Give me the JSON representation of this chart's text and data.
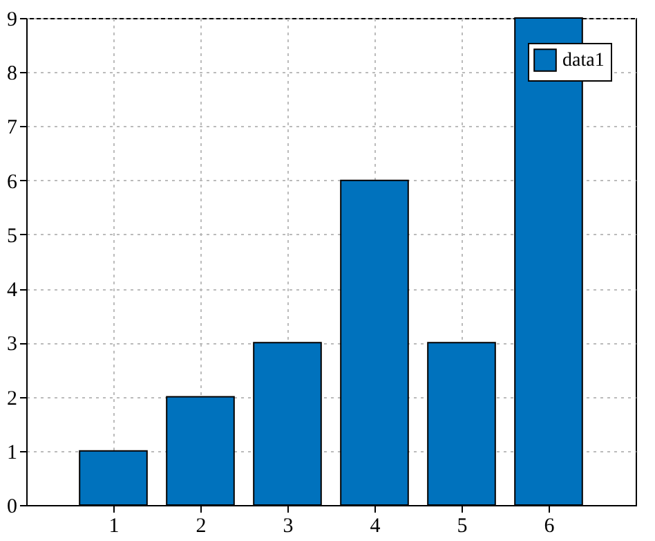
{
  "chart_data": {
    "type": "bar",
    "x": [
      1,
      2,
      3,
      4,
      5,
      6
    ],
    "series": [
      {
        "name": "data1",
        "color": "#0072bd",
        "values": [
          1,
          2,
          3,
          6,
          3,
          9
        ]
      }
    ],
    "xlim": [
      0,
      7
    ],
    "xticks": [
      1,
      2,
      3,
      4,
      5,
      6
    ],
    "ylim": [
      0,
      9
    ],
    "yticks": [
      0,
      1,
      2,
      3,
      4,
      5,
      6,
      7,
      8,
      9
    ],
    "grid": true,
    "legend": "top right"
  }
}
